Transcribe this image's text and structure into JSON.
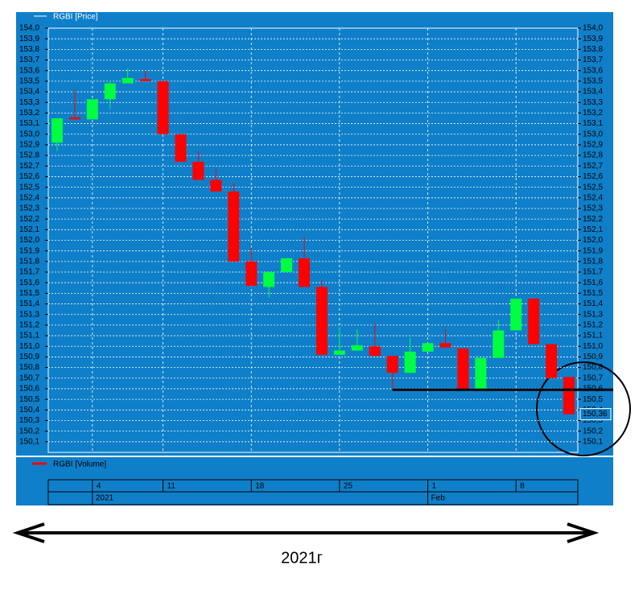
{
  "chart_data": {
    "type": "candlestick",
    "series_name": "RGBI [Price]",
    "volume_name": "RGBI [Volume]",
    "categories": [
      null,
      null,
      "4",
      null,
      null,
      null,
      "11",
      null,
      null,
      null,
      null,
      "18",
      null,
      null,
      null,
      null,
      "25",
      null,
      null,
      null,
      null,
      "1",
      null,
      null,
      null,
      null,
      "8",
      null,
      null,
      null
    ],
    "periods": [
      null,
      null,
      "2021",
      null,
      null,
      null,
      null,
      null,
      null,
      null,
      null,
      null,
      null,
      null,
      null,
      null,
      null,
      null,
      null,
      null,
      null,
      "Feb",
      null,
      null,
      null,
      null,
      null,
      null,
      null,
      null
    ],
    "open": [
      152.92,
      153.16,
      153.14,
      153.33,
      153.48,
      153.52,
      153.5,
      153.0,
      152.74,
      152.57,
      152.46,
      151.8,
      151.56,
      151.7,
      151.83,
      151.56,
      150.92,
      150.96,
      151.0,
      150.91,
      150.75,
      150.95,
      151.03,
      150.98,
      150.6,
      150.89,
      151.15,
      151.45,
      151.02,
      150.71
    ],
    "high": [
      153.15,
      153.42,
      153.33,
      153.5,
      153.62,
      153.6,
      153.5,
      153.0,
      152.84,
      152.67,
      152.54,
      151.93,
      151.7,
      151.83,
      152.03,
      151.62,
      151.18,
      151.16,
      151.22,
      150.91,
      151.08,
      151.03,
      151.16,
      150.98,
      150.89,
      151.25,
      151.45,
      151.45,
      151.02,
      150.71
    ],
    "low": [
      152.84,
      153.14,
      153.14,
      153.24,
      153.48,
      153.5,
      153.0,
      152.74,
      152.57,
      152.46,
      151.8,
      151.57,
      151.46,
      151.7,
      151.56,
      150.92,
      150.92,
      150.96,
      150.91,
      150.6,
      150.75,
      150.95,
      150.99,
      150.6,
      150.6,
      150.89,
      151.15,
      151.02,
      150.7,
      150.36
    ],
    "close": [
      153.15,
      153.14,
      153.33,
      153.48,
      153.53,
      153.5,
      153.0,
      152.74,
      152.57,
      152.46,
      151.8,
      151.57,
      151.7,
      151.83,
      151.56,
      150.92,
      150.96,
      151.01,
      150.91,
      150.75,
      150.95,
      151.03,
      150.99,
      150.6,
      150.89,
      151.15,
      151.45,
      151.02,
      150.7,
      150.36
    ],
    "up_color": "#00ff40",
    "down_color": "#ff0000",
    "ylim": [
      150.0,
      154.0
    ],
    "yticks": [
      {
        "value": 154.0,
        "label": "154,0"
      },
      {
        "value": 153.9,
        "label": "153,9"
      },
      {
        "value": 153.8,
        "label": "153,8"
      },
      {
        "value": 153.7,
        "label": "153,7"
      },
      {
        "value": 153.6,
        "label": "153,6"
      },
      {
        "value": 153.5,
        "label": "153,5"
      },
      {
        "value": 153.4,
        "label": "153,4"
      },
      {
        "value": 153.3,
        "label": "153,3"
      },
      {
        "value": 153.2,
        "label": "153,2"
      },
      {
        "value": 153.1,
        "label": "153,1"
      },
      {
        "value": 153.0,
        "label": "153,0"
      },
      {
        "value": 152.9,
        "label": "152,9"
      },
      {
        "value": 152.8,
        "label": "152,8"
      },
      {
        "value": 152.7,
        "label": "152,7"
      },
      {
        "value": 152.6,
        "label": "152,6"
      },
      {
        "value": 152.5,
        "label": "152,5"
      },
      {
        "value": 152.4,
        "label": "152,4"
      },
      {
        "value": 152.3,
        "label": "152,3"
      },
      {
        "value": 152.2,
        "label": "152,2"
      },
      {
        "value": 152.1,
        "label": "152,1"
      },
      {
        "value": 152.0,
        "label": "152,0"
      },
      {
        "value": 151.9,
        "label": "151,9"
      },
      {
        "value": 151.8,
        "label": "151,8"
      },
      {
        "value": 151.7,
        "label": "151,7"
      },
      {
        "value": 151.6,
        "label": "151,6"
      },
      {
        "value": 151.5,
        "label": "151,5"
      },
      {
        "value": 151.4,
        "label": "151,4"
      },
      {
        "value": 151.3,
        "label": "151,3"
      },
      {
        "value": 151.2,
        "label": "151,2"
      },
      {
        "value": 151.1,
        "label": "151,1"
      },
      {
        "value": 151.0,
        "label": "151,0"
      },
      {
        "value": 150.9,
        "label": "150,9"
      },
      {
        "value": 150.8,
        "label": "150,8"
      },
      {
        "value": 150.7,
        "label": "150,7"
      },
      {
        "value": 150.6,
        "label": "150,6"
      },
      {
        "value": 150.5,
        "label": "150,5"
      },
      {
        "value": 150.4,
        "label": "150,4"
      },
      {
        "value": 150.3,
        "label": "150,3"
      },
      {
        "value": 150.2,
        "label": "150,2"
      },
      {
        "value": 150.1,
        "label": "150,1"
      }
    ],
    "grid": true,
    "last_value": {
      "value": 150.36,
      "label": "150,36"
    },
    "support_level": 150.59
  },
  "annotation": "2021г"
}
